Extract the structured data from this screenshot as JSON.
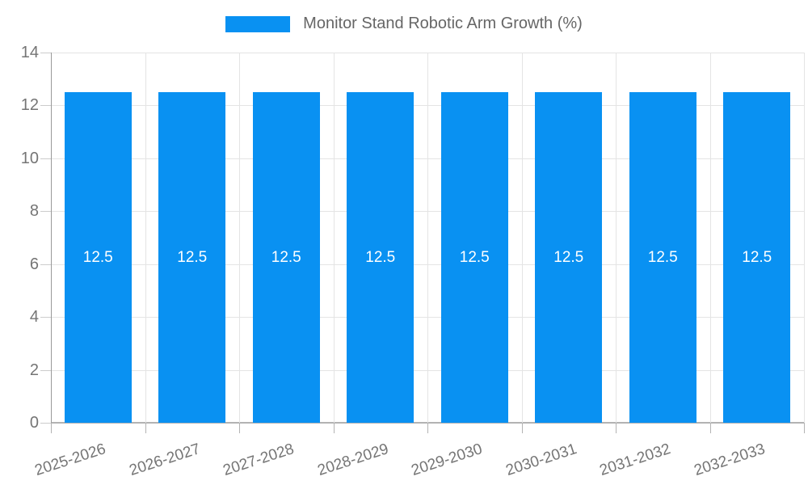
{
  "chart_data": {
    "type": "bar",
    "title": "Monitor Stand Robotic Arm Growth (%)",
    "categories": [
      "2025-2026",
      "2026-2027",
      "2027-2028",
      "2028-2029",
      "2029-2030",
      "2030-2031",
      "2031-2032",
      "2032-2033"
    ],
    "values": [
      12.5,
      12.5,
      12.5,
      12.5,
      12.5,
      12.5,
      12.5,
      12.5
    ],
    "bar_value_labels": [
      "12.5",
      "12.5",
      "12.5",
      "12.5",
      "12.5",
      "12.5",
      "12.5",
      "12.5"
    ],
    "xlabel": "",
    "ylabel": "",
    "ylim": [
      0,
      14
    ],
    "yticks": [
      0,
      2,
      4,
      6,
      8,
      10,
      12,
      14
    ],
    "grid": true,
    "legend_position": "top-center",
    "x_label_rotation_deg": -18,
    "colors": {
      "bar": "#0991F2",
      "bar_label": "#FFFFFF",
      "axis_text": "#757575",
      "legend_text": "#666666",
      "gridline": "#E4E4E4",
      "y_axis_line": "#999999",
      "x_axis_line": "#B3B3B3",
      "y_tick_mark": "#CCCCCC",
      "x_tick_mark": "#B3B3B3",
      "background": "#FFFFFF"
    }
  }
}
